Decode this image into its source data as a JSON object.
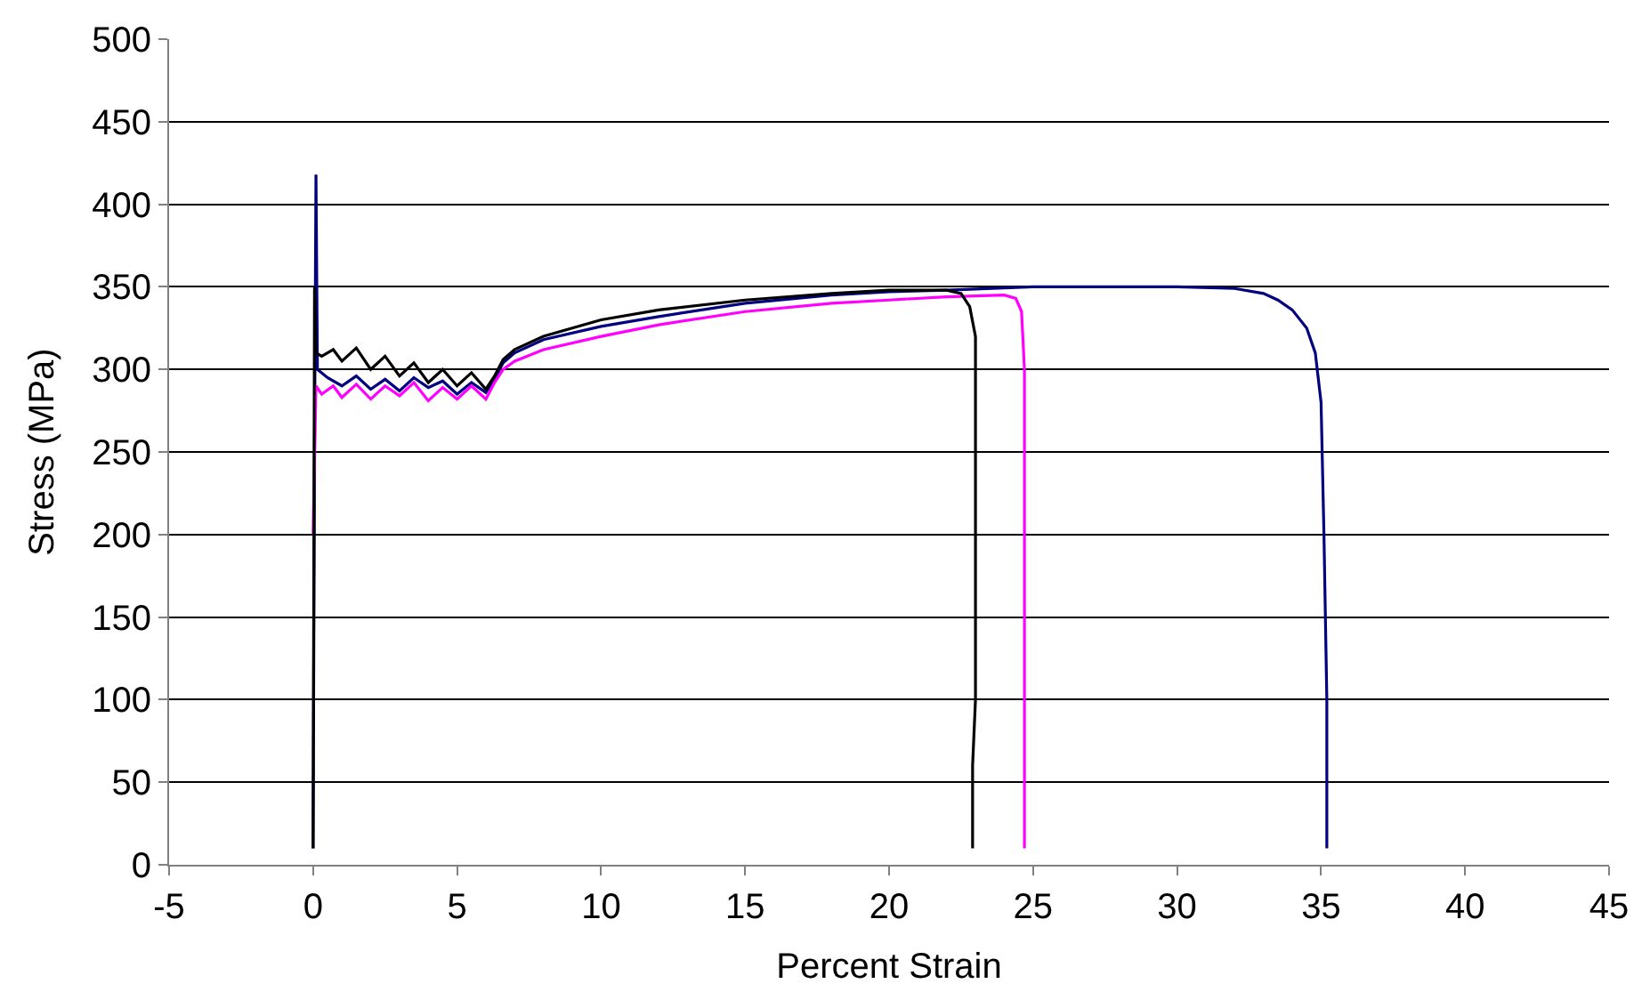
{
  "chart_data": {
    "type": "line",
    "xlabel": "Percent Strain",
    "ylabel": "Stress (MPa)",
    "xlim": [
      -5,
      45
    ],
    "ylim": [
      0,
      500
    ],
    "xticks": [
      -5,
      0,
      5,
      10,
      15,
      20,
      25,
      30,
      35,
      40,
      45
    ],
    "yticks": [
      0,
      50,
      100,
      150,
      200,
      250,
      300,
      350,
      400,
      450,
      500
    ],
    "grid": "y",
    "marker": "none",
    "line_style": "solid",
    "series": [
      {
        "color": "#000080",
        "x": [
          0,
          0.05,
          0.1,
          0.15,
          0.5,
          1,
          1.5,
          2,
          2.5,
          3,
          3.5,
          4,
          4.5,
          5,
          5.5,
          6,
          6.3,
          6.6,
          7,
          8,
          10,
          12,
          15,
          18,
          20,
          22,
          25,
          28,
          30,
          32,
          33,
          33.5,
          34,
          34.5,
          34.8,
          35,
          35.1,
          35.2,
          35.2
        ],
        "values": [
          10,
          250,
          418,
          300,
          295,
          290,
          296,
          288,
          294,
          287,
          295,
          289,
          293,
          285,
          292,
          286,
          294,
          304,
          310,
          318,
          326,
          332,
          340,
          345,
          347,
          348,
          350,
          350,
          350,
          349,
          346,
          342,
          336,
          325,
          310,
          280,
          200,
          100,
          10
        ]
      },
      {
        "color": "#ff00ff",
        "x": [
          0,
          0.1,
          0.3,
          0.7,
          1,
          1.5,
          2,
          2.5,
          3,
          3.5,
          4,
          4.5,
          5,
          5.5,
          6,
          6.3,
          6.6,
          7,
          8,
          10,
          12,
          15,
          18,
          20,
          22,
          24,
          24.4,
          24.6,
          24.7,
          24.7
        ],
        "values": [
          200,
          290,
          285,
          290,
          283,
          291,
          282,
          290,
          284,
          292,
          281,
          289,
          282,
          290,
          282,
          292,
          300,
          305,
          312,
          320,
          327,
          335,
          340,
          342,
          344,
          345,
          343,
          335,
          300,
          10
        ]
      },
      {
        "color": "#000000",
        "x": [
          0,
          0.05,
          0.1,
          0.3,
          0.7,
          1,
          1.5,
          2,
          2.5,
          3,
          3.5,
          4,
          4.5,
          5,
          5.5,
          6,
          6.3,
          6.6,
          7,
          8,
          10,
          12,
          15,
          18,
          20,
          22,
          22.5,
          22.8,
          23,
          23,
          22.9,
          22.9
        ],
        "values": [
          10,
          350,
          310,
          308,
          312,
          305,
          313,
          300,
          308,
          296,
          304,
          292,
          300,
          290,
          298,
          288,
          296,
          306,
          312,
          320,
          330,
          336,
          342,
          346,
          348,
          348,
          346,
          338,
          320,
          100,
          60,
          10
        ]
      }
    ]
  }
}
